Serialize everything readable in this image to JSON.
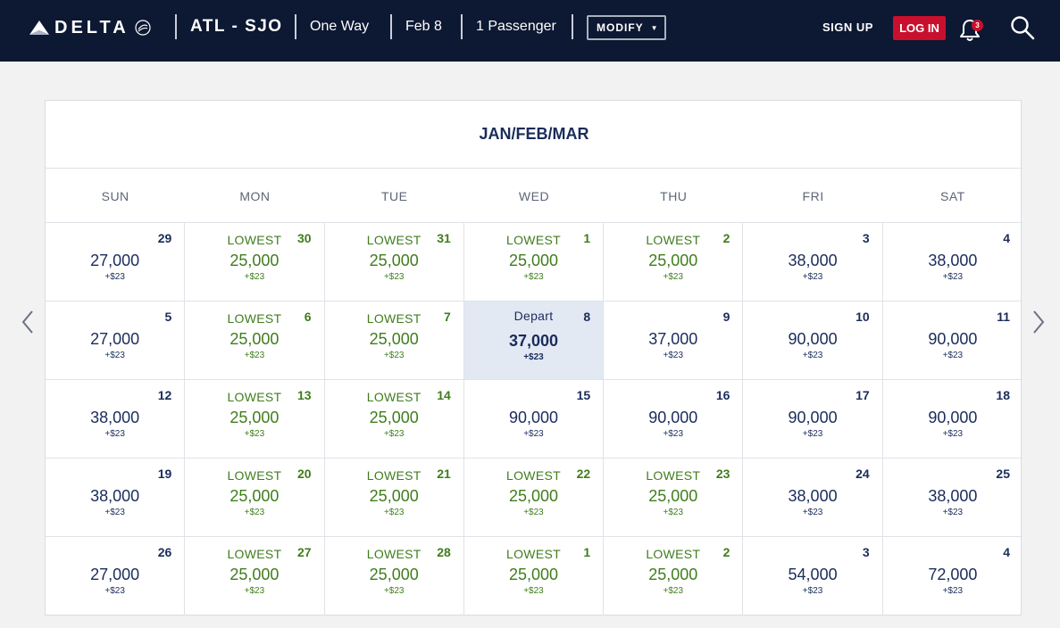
{
  "header": {
    "brand": "DELTA",
    "route": "ATL - SJO",
    "trip_type": "One Way",
    "date": "Feb 8",
    "passengers": "1 Passenger",
    "modify_label": "MODIFY",
    "signup_label": "SIGN UP",
    "login_label": "LOG IN",
    "notification_count": "3",
    "icons": [
      "delta-widget-icon",
      "skyteam-seal-icon",
      "caret-down-icon",
      "bell-icon",
      "search-icon"
    ]
  },
  "calendar": {
    "title": "JAN/FEB/MAR",
    "weekdays": [
      "SUN",
      "MON",
      "TUE",
      "WED",
      "THU",
      "FRI",
      "SAT"
    ],
    "tax_label": "+$23",
    "lowest_label": "LOWEST",
    "depart_label": "Depart",
    "colors": {
      "lowest": "#3f7d1c",
      "normal": "#1a2c5b",
      "selected_bg": "#e3e9f3"
    },
    "nav": {
      "prev": "chevron-left-icon",
      "next": "chevron-right-icon"
    },
    "weeks": [
      [
        {
          "day": "29",
          "price": "27,000",
          "kind": "normal"
        },
        {
          "day": "30",
          "price": "25,000",
          "kind": "lowest"
        },
        {
          "day": "31",
          "price": "25,000",
          "kind": "lowest"
        },
        {
          "day": "1",
          "price": "25,000",
          "kind": "lowest"
        },
        {
          "day": "2",
          "price": "25,000",
          "kind": "lowest"
        },
        {
          "day": "3",
          "price": "38,000",
          "kind": "normal"
        },
        {
          "day": "4",
          "price": "38,000",
          "kind": "normal"
        }
      ],
      [
        {
          "day": "5",
          "price": "27,000",
          "kind": "normal"
        },
        {
          "day": "6",
          "price": "25,000",
          "kind": "lowest"
        },
        {
          "day": "7",
          "price": "25,000",
          "kind": "lowest"
        },
        {
          "day": "8",
          "price": "37,000",
          "kind": "selected"
        },
        {
          "day": "9",
          "price": "37,000",
          "kind": "normal"
        },
        {
          "day": "10",
          "price": "90,000",
          "kind": "normal"
        },
        {
          "day": "11",
          "price": "90,000",
          "kind": "normal"
        }
      ],
      [
        {
          "day": "12",
          "price": "38,000",
          "kind": "normal"
        },
        {
          "day": "13",
          "price": "25,000",
          "kind": "lowest"
        },
        {
          "day": "14",
          "price": "25,000",
          "kind": "lowest"
        },
        {
          "day": "15",
          "price": "90,000",
          "kind": "normal"
        },
        {
          "day": "16",
          "price": "90,000",
          "kind": "normal"
        },
        {
          "day": "17",
          "price": "90,000",
          "kind": "normal"
        },
        {
          "day": "18",
          "price": "90,000",
          "kind": "normal"
        }
      ],
      [
        {
          "day": "19",
          "price": "38,000",
          "kind": "normal"
        },
        {
          "day": "20",
          "price": "25,000",
          "kind": "lowest"
        },
        {
          "day": "21",
          "price": "25,000",
          "kind": "lowest"
        },
        {
          "day": "22",
          "price": "25,000",
          "kind": "lowest"
        },
        {
          "day": "23",
          "price": "25,000",
          "kind": "lowest"
        },
        {
          "day": "24",
          "price": "38,000",
          "kind": "normal"
        },
        {
          "day": "25",
          "price": "38,000",
          "kind": "normal"
        }
      ],
      [
        {
          "day": "26",
          "price": "27,000",
          "kind": "normal"
        },
        {
          "day": "27",
          "price": "25,000",
          "kind": "lowest"
        },
        {
          "day": "28",
          "price": "25,000",
          "kind": "lowest"
        },
        {
          "day": "1",
          "price": "25,000",
          "kind": "lowest"
        },
        {
          "day": "2",
          "price": "25,000",
          "kind": "lowest"
        },
        {
          "day": "3",
          "price": "54,000",
          "kind": "normal"
        },
        {
          "day": "4",
          "price": "72,000",
          "kind": "normal"
        }
      ]
    ]
  }
}
